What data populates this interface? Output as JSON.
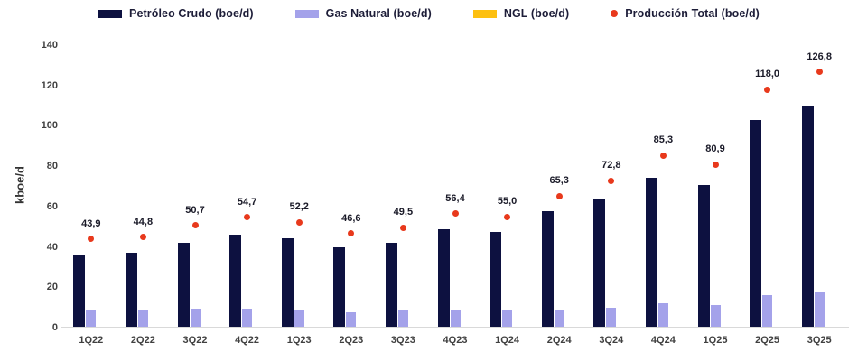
{
  "chart_data": {
    "type": "bar",
    "title": "",
    "ylabel": "kboe/d",
    "xlabel": "",
    "ylim": [
      0,
      140
    ],
    "yticks": [
      0,
      20,
      40,
      60,
      80,
      100,
      120,
      140
    ],
    "grid": false,
    "legend_position": "top",
    "decimal_separator": ",",
    "categories": [
      "1Q22",
      "2Q22",
      "3Q22",
      "4Q22",
      "1Q23",
      "2Q23",
      "3Q23",
      "4Q23",
      "1Q24",
      "2Q24",
      "3Q24",
      "4Q24",
      "1Q25",
      "2Q25",
      "3Q25"
    ],
    "series": [
      {
        "name": "Petróleo Crudo (boe/d)",
        "type": "bar",
        "color": "#0d1140",
        "values": [
          35.6,
          36.6,
          41.7,
          45.6,
          44.0,
          39.5,
          41.6,
          48.5,
          47.0,
          57.1,
          63.6,
          73.6,
          70.1,
          102.4,
          109.3
        ]
      },
      {
        "name": "Gas Natural (boe/d)",
        "type": "bar",
        "color": "#a4a2ea",
        "values": [
          8.3,
          8.2,
          9.0,
          9.1,
          8.2,
          7.1,
          7.9,
          7.9,
          8.0,
          8.2,
          9.2,
          11.7,
          10.8,
          15.6,
          17.5
        ]
      },
      {
        "name": "NGL (boe/d)",
        "type": "bar",
        "color": "#fdc010",
        "values": [
          0,
          0,
          0,
          0,
          0,
          0,
          0,
          0,
          0,
          0,
          0,
          0,
          0,
          0,
          0
        ]
      },
      {
        "name": "Producción Total (boe/d)",
        "type": "scatter",
        "color": "#e8391c",
        "values": [
          43.9,
          44.8,
          50.7,
          54.7,
          52.2,
          46.6,
          49.5,
          56.4,
          55.0,
          65.3,
          72.8,
          85.3,
          80.9,
          118.0,
          126.8
        ],
        "labels": [
          "43,9",
          "44,8",
          "50,7",
          "54,7",
          "52,2",
          "46,6",
          "49,5",
          "56,4",
          "55,0",
          "65,3",
          "72,8",
          "85,3",
          "80,9",
          "118,0",
          "126,8"
        ]
      }
    ]
  }
}
